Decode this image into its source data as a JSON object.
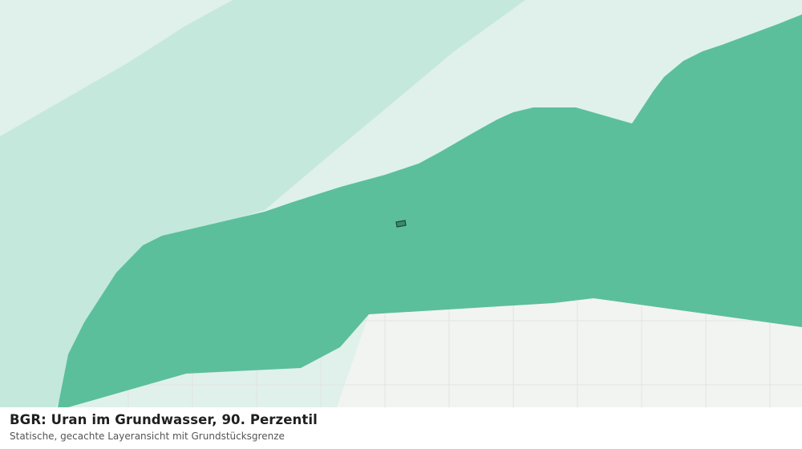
{
  "map": {
    "layers": [
      {
        "name": "lowest-class-zone",
        "color": "#dff1ea"
      },
      {
        "name": "low-class-zone",
        "color": "#c5e8dc"
      },
      {
        "name": "main-class-zone",
        "color": "#5bbf9c"
      },
      {
        "name": "no-data-area",
        "color": "#f2f4f2"
      }
    ],
    "gridline_color": "#e1e4e1",
    "parcel": {
      "name": "grundstueck",
      "fill": "#3d8a68",
      "stroke": "#1d4a36"
    }
  },
  "caption": {
    "title": "BGR: Uran im Grundwasser, 90. Perzentil",
    "subtitle": "Statische, gecachte Layeransicht mit Grundstücksgrenze"
  }
}
